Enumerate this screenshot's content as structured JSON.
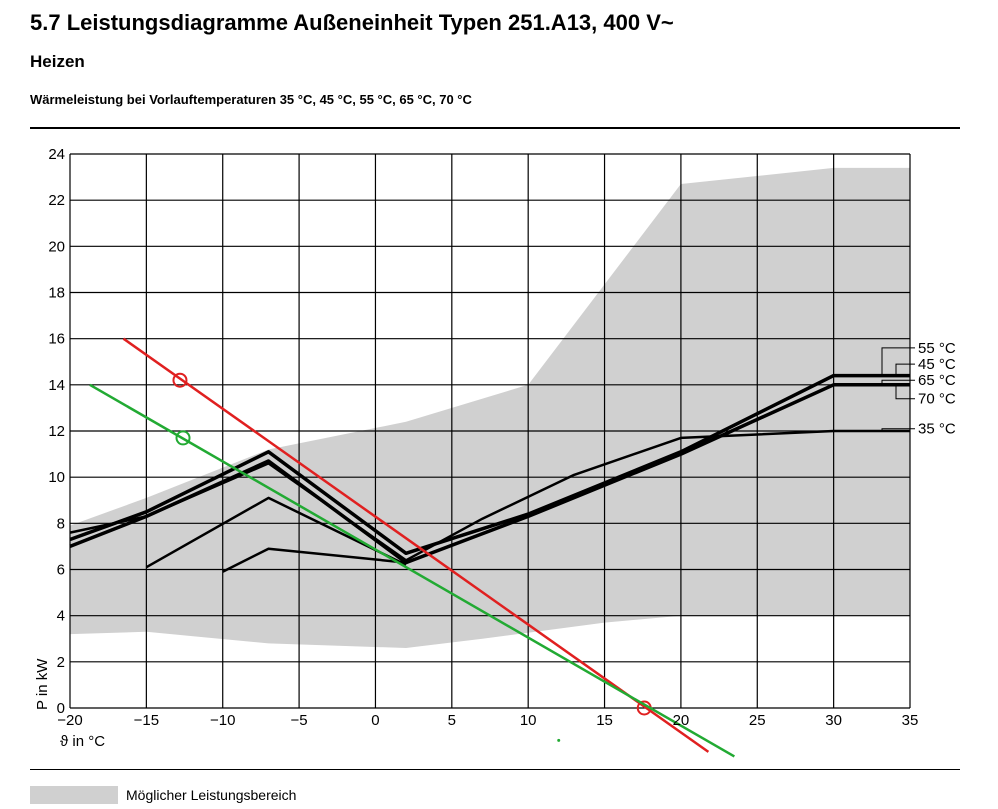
{
  "header": {
    "title": "5.7 Leistungsdiagramme Außeneinheit Typen 251.A13, 400 V~",
    "subtitle": "Heizen",
    "caption": "Wärmeleistung bei Vorlauftemperaturen 35 °C, 45 °C, 55 °C, 65 °C, 70 °C"
  },
  "legend": {
    "label": "Möglicher Leistungsbereich",
    "color": "#d0d0d0"
  },
  "colors": {
    "grid": "#000000",
    "curves": "#000000",
    "red_line": "#e02020",
    "green_line": "#22aa33",
    "area": "#d0d0d0"
  },
  "chart_data": {
    "type": "line",
    "xlabel": "ϑ in °C",
    "ylabel": "P in kW",
    "xlim": [
      -20,
      35
    ],
    "ylim": [
      0,
      24
    ],
    "xticks": [
      -20,
      -15,
      -10,
      -5,
      0,
      5,
      10,
      15,
      20,
      25,
      30,
      35
    ],
    "yticks": [
      0,
      2,
      4,
      6,
      8,
      10,
      12,
      14,
      16,
      18,
      20,
      22,
      24
    ],
    "grid": true,
    "area": {
      "name": "Möglicher Leistungsbereich",
      "upper": [
        [
          -20,
          7.9
        ],
        [
          -15,
          9.1
        ],
        [
          -7,
          11.2
        ],
        [
          2,
          12.4
        ],
        [
          10,
          14.0
        ],
        [
          20,
          22.7
        ],
        [
          30,
          23.4
        ],
        [
          35,
          23.4
        ]
      ],
      "lower": [
        [
          -20,
          3.2
        ],
        [
          -15,
          3.3
        ],
        [
          -7,
          2.8
        ],
        [
          2,
          2.6
        ],
        [
          7,
          3.0
        ],
        [
          15,
          3.7
        ],
        [
          20,
          4.0
        ],
        [
          35,
          4.0
        ]
      ]
    },
    "series": [
      {
        "name": "35 °C",
        "points": [
          [
            -20,
            7.6
          ],
          [
            -15,
            8.3
          ],
          [
            -7,
            10.6
          ],
          [
            2,
            6.4
          ],
          [
            7,
            8.2
          ],
          [
            13,
            10.1
          ],
          [
            20,
            11.7
          ],
          [
            30,
            12.0
          ],
          [
            35,
            12.0
          ]
        ],
        "width": 2.5
      },
      {
        "name": "45 °C",
        "points": [
          [
            -20,
            7.3
          ],
          [
            -15,
            8.5
          ],
          [
            -7,
            11.1
          ],
          [
            2,
            6.7
          ],
          [
            10,
            8.4
          ],
          [
            20,
            11.1
          ],
          [
            30,
            14.4
          ],
          [
            35,
            14.4
          ]
        ],
        "width": 3.5
      },
      {
        "name": "55 °C",
        "points": [
          [
            -20,
            7.0
          ],
          [
            -15,
            8.3
          ],
          [
            -7,
            10.7
          ],
          [
            2,
            6.3
          ],
          [
            10,
            8.3
          ],
          [
            20,
            11.0
          ],
          [
            30,
            14.0
          ],
          [
            35,
            14.0
          ]
        ],
        "width": 3.5
      },
      {
        "name": "65 °C",
        "points": [
          [
            -15,
            6.1
          ],
          [
            -7,
            9.1
          ],
          [
            2,
            6.2
          ]
        ],
        "width": 2.5
      },
      {
        "name": "70 °C",
        "points": [
          [
            -10,
            5.9
          ],
          [
            -7,
            6.9
          ],
          [
            2,
            6.3
          ]
        ],
        "width": 2.5
      }
    ],
    "label_order": [
      "55 °C",
      "45 °C",
      "65 °C",
      "70 °C",
      "35 °C"
    ],
    "label_y": [
      15.6,
      14.9,
      14.2,
      13.4,
      12.1
    ],
    "label_anchor_y": [
      14.4,
      14.4,
      14.0,
      14.0,
      12.0
    ],
    "lines": [
      {
        "name": "red",
        "from": [
          -16.5,
          16.0
        ],
        "to": [
          21.8,
          -1.9
        ],
        "marker": [
          [
            -12.8,
            14.2
          ],
          [
            17.6,
            0.0
          ]
        ]
      },
      {
        "name": "green",
        "from": [
          -18.7,
          14.0
        ],
        "to": [
          23.5,
          -2.1
        ],
        "marker": [
          [
            -12.6,
            11.7
          ]
        ]
      }
    ],
    "dot": [
      12.0,
      -1.4
    ]
  }
}
